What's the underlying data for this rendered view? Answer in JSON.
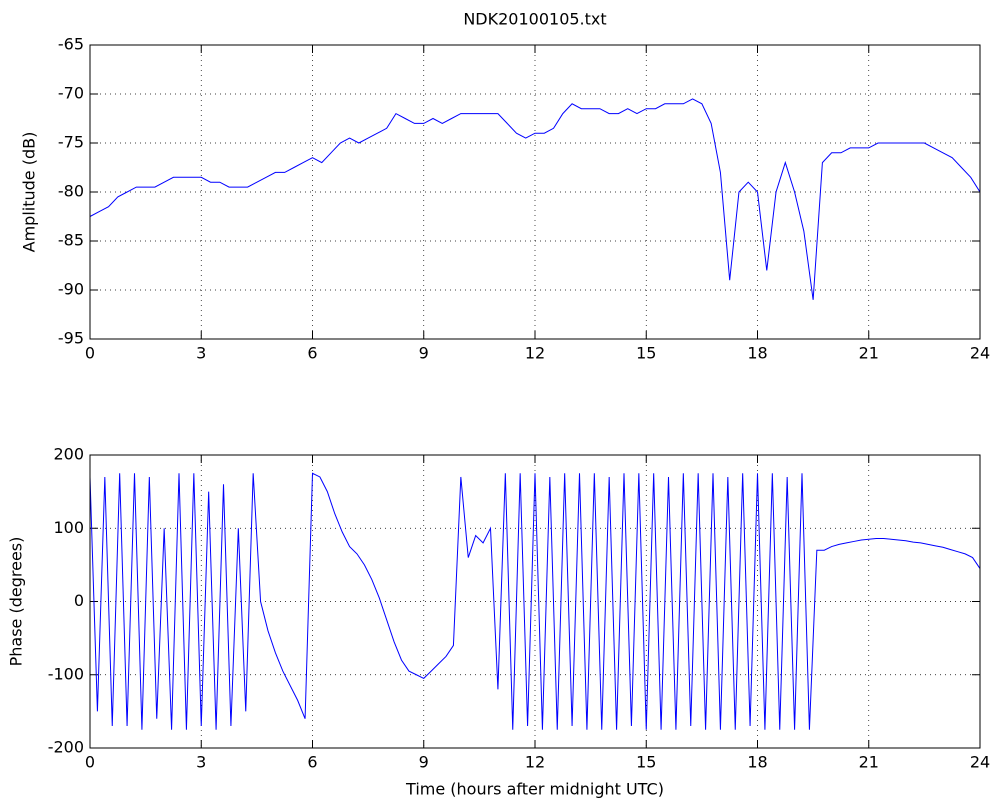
{
  "chart_data": [
    {
      "type": "line",
      "title": "NDK20100105.txt",
      "ylabel": "Amplitude (dB)",
      "color": "#0000ff",
      "grid": true,
      "xlim": [
        0,
        24
      ],
      "xticks": [
        0,
        3,
        6,
        9,
        12,
        15,
        18,
        21,
        24
      ],
      "ylim": [
        -95,
        -65
      ],
      "yticks": [
        -95,
        -90,
        -85,
        -80,
        -75,
        -70,
        -65
      ],
      "x": [
        0,
        0.25,
        0.5,
        0.75,
        1,
        1.25,
        1.5,
        1.75,
        2,
        2.25,
        2.5,
        2.75,
        3,
        3.25,
        3.5,
        3.75,
        4,
        4.25,
        4.5,
        4.75,
        5,
        5.25,
        5.5,
        5.75,
        6,
        6.25,
        6.5,
        6.75,
        7,
        7.25,
        7.5,
        7.75,
        8,
        8.25,
        8.5,
        8.75,
        9,
        9.25,
        9.5,
        9.75,
        10,
        10.25,
        10.5,
        10.75,
        11,
        11.25,
        11.5,
        11.75,
        12,
        12.25,
        12.5,
        12.75,
        13,
        13.25,
        13.5,
        13.75,
        14,
        14.25,
        14.5,
        14.75,
        15,
        15.25,
        15.5,
        15.75,
        16,
        16.25,
        16.5,
        16.75,
        17,
        17.25,
        17.5,
        17.75,
        18,
        18.25,
        18.5,
        18.75,
        19,
        19.25,
        19.5,
        19.75,
        20,
        20.25,
        20.5,
        20.75,
        21,
        21.25,
        21.5,
        21.75,
        22,
        22.25,
        22.5,
        22.75,
        23,
        23.25,
        23.5,
        23.75,
        24
      ],
      "values": [
        -82.5,
        -82,
        -81.5,
        -80.5,
        -80,
        -79.5,
        -79.5,
        -79.5,
        -79,
        -78.5,
        -78.5,
        -78.5,
        -78.5,
        -79,
        -79,
        -79.5,
        -79.5,
        -79.5,
        -79,
        -78.5,
        -78,
        -78,
        -77.5,
        -77,
        -76.5,
        -77,
        -76,
        -75,
        -74.5,
        -75,
        -74.5,
        -74,
        -73.5,
        -72,
        -72.5,
        -73,
        -73,
        -72.5,
        -73,
        -72.5,
        -72,
        -72,
        -72,
        -72,
        -72,
        -73,
        -74,
        -74.5,
        -74,
        -74,
        -73.5,
        -72,
        -71,
        -71.5,
        -71.5,
        -71.5,
        -72,
        -72,
        -71.5,
        -72,
        -71.5,
        -71.5,
        -71,
        -71,
        -71,
        -70.5,
        -71,
        -73,
        -78,
        -89,
        -80,
        -79,
        -80,
        -88,
        -80,
        -77,
        -80,
        -84,
        -91,
        -77,
        -76,
        -76,
        -75.5,
        -75.5,
        -75.5,
        -75,
        -75,
        -75,
        -75,
        -75,
        -75,
        -75.5,
        -76,
        -76.5,
        -77.5,
        -78.5,
        -80
      ]
    },
    {
      "type": "line",
      "xlabel": "Time (hours after midnight UTC)",
      "ylabel": "Phase (degrees)",
      "color": "#0000ff",
      "grid": true,
      "xlim": [
        0,
        24
      ],
      "xticks": [
        0,
        3,
        6,
        9,
        12,
        15,
        18,
        21,
        24
      ],
      "ylim": [
        -200,
        200
      ],
      "yticks": [
        -200,
        -100,
        0,
        100,
        200
      ],
      "x": [
        0,
        0.2,
        0.4,
        0.6,
        0.8,
        1,
        1.2,
        1.4,
        1.6,
        1.8,
        2,
        2.2,
        2.4,
        2.6,
        2.8,
        3,
        3.2,
        3.4,
        3.6,
        3.8,
        4,
        4.2,
        4.4,
        4.6,
        4.8,
        5,
        5.2,
        5.4,
        5.6,
        5.8,
        6,
        6.2,
        6.4,
        6.6,
        6.8,
        7,
        7.2,
        7.4,
        7.6,
        7.8,
        8,
        8.2,
        8.4,
        8.6,
        8.8,
        9,
        9.2,
        9.4,
        9.6,
        9.8,
        10,
        10.2,
        10.4,
        10.6,
        10.8,
        11,
        11.2,
        11.4,
        11.6,
        11.8,
        12,
        12.2,
        12.4,
        12.6,
        12.8,
        13,
        13.2,
        13.4,
        13.6,
        13.8,
        14,
        14.2,
        14.4,
        14.6,
        14.8,
        15,
        15.2,
        15.4,
        15.6,
        15.8,
        16,
        16.2,
        16.4,
        16.6,
        16.8,
        17,
        17.2,
        17.4,
        17.6,
        17.8,
        18,
        18.2,
        18.4,
        18.6,
        18.8,
        19,
        19.2,
        19.4,
        19.6,
        19.8,
        20,
        20.2,
        20.4,
        20.6,
        20.8,
        21,
        21.2,
        21.4,
        21.6,
        21.8,
        22,
        22.2,
        22.4,
        22.6,
        22.8,
        23,
        23.2,
        23.4,
        23.6,
        23.8,
        24
      ],
      "values": [
        170,
        -150,
        170,
        -170,
        175,
        -170,
        175,
        -175,
        170,
        -160,
        100,
        -175,
        175,
        -175,
        175,
        -170,
        150,
        -175,
        160,
        -170,
        100,
        -150,
        175,
        0,
        -40,
        -70,
        -95,
        -115,
        -135,
        -160,
        175,
        170,
        150,
        120,
        95,
        75,
        65,
        50,
        30,
        5,
        -25,
        -55,
        -80,
        -95,
        -100,
        -105,
        -95,
        -85,
        -75,
        -60,
        170,
        60,
        90,
        80,
        100,
        -120,
        175,
        -175,
        175,
        -170,
        175,
        -175,
        170,
        -175,
        175,
        -170,
        175,
        -175,
        175,
        -175,
        170,
        -175,
        175,
        -170,
        175,
        -175,
        175,
        -175,
        170,
        -175,
        175,
        -170,
        175,
        -175,
        175,
        -175,
        170,
        -175,
        175,
        -170,
        175,
        -175,
        175,
        -175,
        170,
        -175,
        175,
        -175,
        70,
        70,
        75,
        78,
        80,
        82,
        84,
        85,
        86,
        86,
        85,
        84,
        83,
        81,
        80,
        78,
        76,
        74,
        71,
        68,
        65,
        60,
        45
      ]
    }
  ]
}
